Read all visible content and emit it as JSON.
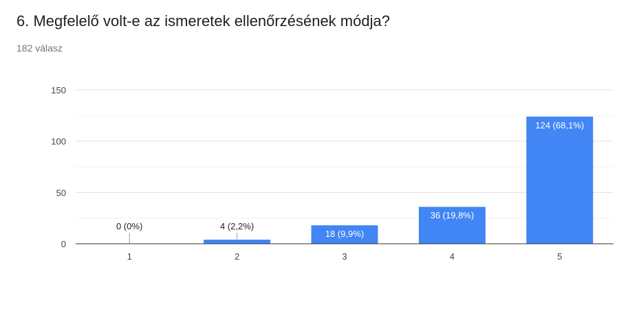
{
  "question": {
    "title": "6. Megfelelő volt-e az ismeretek ellenőrzésének módja?",
    "response_count": "182 válasz"
  },
  "colors": {
    "bar": "#4285f4",
    "gridline": "#e0e0e0",
    "minor_gridline": "#f2f2f2",
    "axis": "#333333",
    "label_inside": "#ffffff",
    "label_outside": "#222222"
  },
  "chart_data": {
    "type": "bar",
    "categories": [
      "1",
      "2",
      "3",
      "4",
      "5"
    ],
    "values": [
      0,
      4,
      18,
      36,
      124
    ],
    "data_labels": [
      "0 (0%)",
      "4 (2,2%)",
      "18 (9,9%)",
      "36 (19,8%)",
      "124 (68,1%)"
    ],
    "ylim": [
      0,
      150
    ],
    "yticks": [
      0,
      50,
      100,
      150
    ],
    "ytick_labels": [
      "0",
      "50",
      "100",
      "150"
    ],
    "grid": true,
    "legend": "none",
    "title": "",
    "xlabel": "",
    "ylabel": ""
  }
}
